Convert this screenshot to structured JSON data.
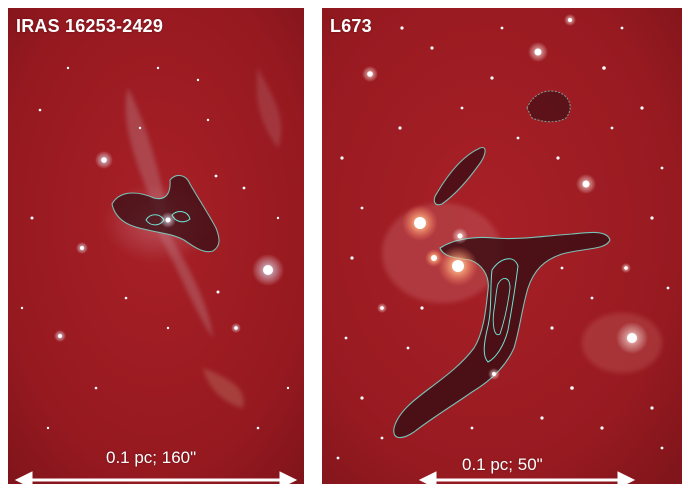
{
  "panels": [
    {
      "title": "IRAS 16253-2429",
      "scale_bar": "0.1 pc; 160\""
    },
    {
      "title": "L673",
      "scale_bar": "0.1 pc; 50\""
    }
  ],
  "colors": {
    "background": "#9e1b22",
    "contour": "#6fe6d6",
    "stars": "#ffffff",
    "scale_bar": "#ffffff"
  }
}
